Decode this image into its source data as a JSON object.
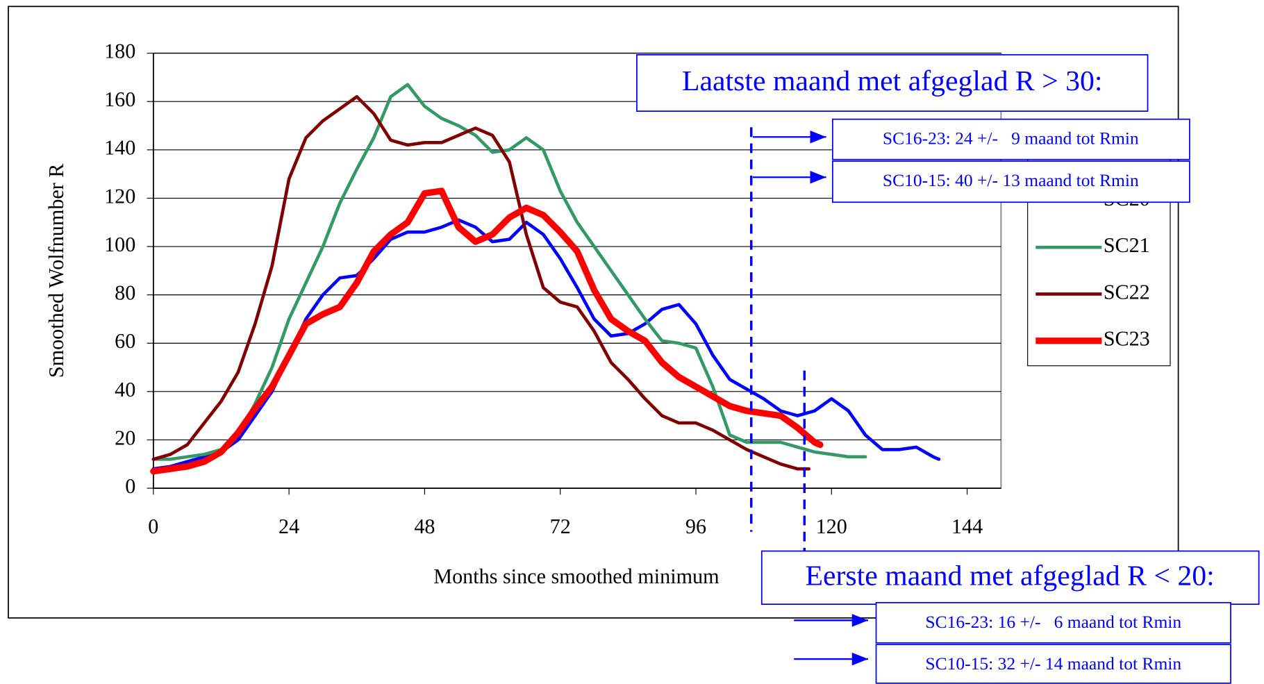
{
  "chart_data": {
    "type": "line",
    "x_label": "Months since smoothed minimum",
    "y_label": "Smoothed Wolfnumber R",
    "xlim": [
      0,
      150
    ],
    "xticks": [
      0,
      24,
      48,
      72,
      96,
      120,
      144
    ],
    "ylim": [
      0,
      180
    ],
    "yticks": [
      0,
      20,
      40,
      60,
      80,
      100,
      120,
      140,
      160,
      180
    ],
    "grid": true,
    "legend": "right",
    "series": [
      {
        "name": "SC20",
        "color": "#0000ff",
        "width": 4,
        "x": [
          0,
          3,
          6,
          9,
          12,
          15,
          18,
          21,
          24,
          27,
          30,
          33,
          36,
          39,
          42,
          45,
          48,
          51,
          54,
          57,
          60,
          63,
          66,
          69,
          72,
          75,
          78,
          81,
          84,
          87,
          90,
          93,
          96,
          99,
          102,
          105,
          108,
          111,
          114,
          117,
          120,
          123,
          126,
          129,
          132,
          135,
          138,
          139
        ],
        "values": [
          8,
          9,
          11,
          13,
          15,
          20,
          30,
          40,
          55,
          70,
          80,
          87,
          88,
          95,
          103,
          106,
          106,
          108,
          111,
          108,
          102,
          103,
          110,
          105,
          95,
          83,
          70,
          63,
          64,
          68,
          74,
          76,
          68,
          55,
          45,
          41,
          37,
          32,
          30,
          32,
          37,
          32,
          22,
          16,
          16,
          17,
          13,
          12
        ]
      },
      {
        "name": "SC21",
        "color": "#339966",
        "width": 4,
        "x": [
          0,
          3,
          6,
          9,
          12,
          15,
          18,
          21,
          24,
          27,
          30,
          33,
          36,
          39,
          42,
          45,
          48,
          51,
          54,
          57,
          60,
          63,
          66,
          69,
          72,
          75,
          78,
          81,
          84,
          87,
          90,
          93,
          96,
          99,
          102,
          105,
          108,
          111,
          114,
          117,
          120,
          123,
          126
        ],
        "values": [
          12,
          12,
          13,
          14,
          16,
          22,
          35,
          50,
          70,
          85,
          100,
          118,
          132,
          145,
          162,
          167,
          158,
          153,
          150,
          146,
          139,
          140,
          145,
          140,
          123,
          110,
          100,
          90,
          80,
          70,
          61,
          60,
          58,
          42,
          22,
          19,
          19,
          19,
          17,
          15,
          14,
          13,
          13
        ]
      },
      {
        "name": "SC22",
        "color": "#800000",
        "width": 4,
        "x": [
          0,
          3,
          6,
          9,
          12,
          15,
          18,
          21,
          24,
          27,
          30,
          33,
          36,
          39,
          42,
          45,
          48,
          51,
          54,
          57,
          60,
          63,
          66,
          69,
          72,
          75,
          78,
          81,
          84,
          87,
          90,
          93,
          96,
          99,
          102,
          105,
          108,
          111,
          114,
          116
        ],
        "values": [
          12,
          14,
          18,
          27,
          36,
          48,
          68,
          92,
          128,
          145,
          152,
          157,
          162,
          155,
          144,
          142,
          143,
          143,
          146,
          149,
          146,
          135,
          105,
          83,
          77,
          75,
          65,
          52,
          45,
          37,
          30,
          27,
          27,
          24,
          20,
          16,
          13,
          10,
          8,
          8
        ]
      },
      {
        "name": "SC23",
        "color": "#ff0000",
        "width": 8,
        "x": [
          0,
          3,
          6,
          9,
          12,
          15,
          18,
          21,
          24,
          27,
          30,
          33,
          36,
          39,
          42,
          45,
          48,
          51,
          54,
          57,
          60,
          63,
          66,
          69,
          72,
          75,
          78,
          81,
          84,
          87,
          90,
          93,
          96,
          99,
          102,
          105,
          108,
          111,
          114,
          117,
          118
        ],
        "values": [
          7,
          8,
          9,
          11,
          15,
          23,
          33,
          42,
          55,
          68,
          72,
          75,
          85,
          98,
          105,
          110,
          122,
          123,
          108,
          102,
          105,
          112,
          116,
          113,
          106,
          98,
          82,
          70,
          65,
          61,
          52,
          46,
          42,
          38,
          34,
          32,
          31,
          30,
          25,
          19,
          18
        ]
      }
    ],
    "annotations": [
      "Laatste maand met afgeglad R > 30:",
      "SC16-23: 24 +/-   9 maand tot Rmin",
      "SC10-15: 40 +/- 13 maand tot Rmin",
      "Eerste maand met afgeglad R < 20:",
      "SC16-23: 16 +/-   6 maand tot Rmin",
      "SC10-15: 32 +/- 14 maand tot Rmin"
    ]
  }
}
